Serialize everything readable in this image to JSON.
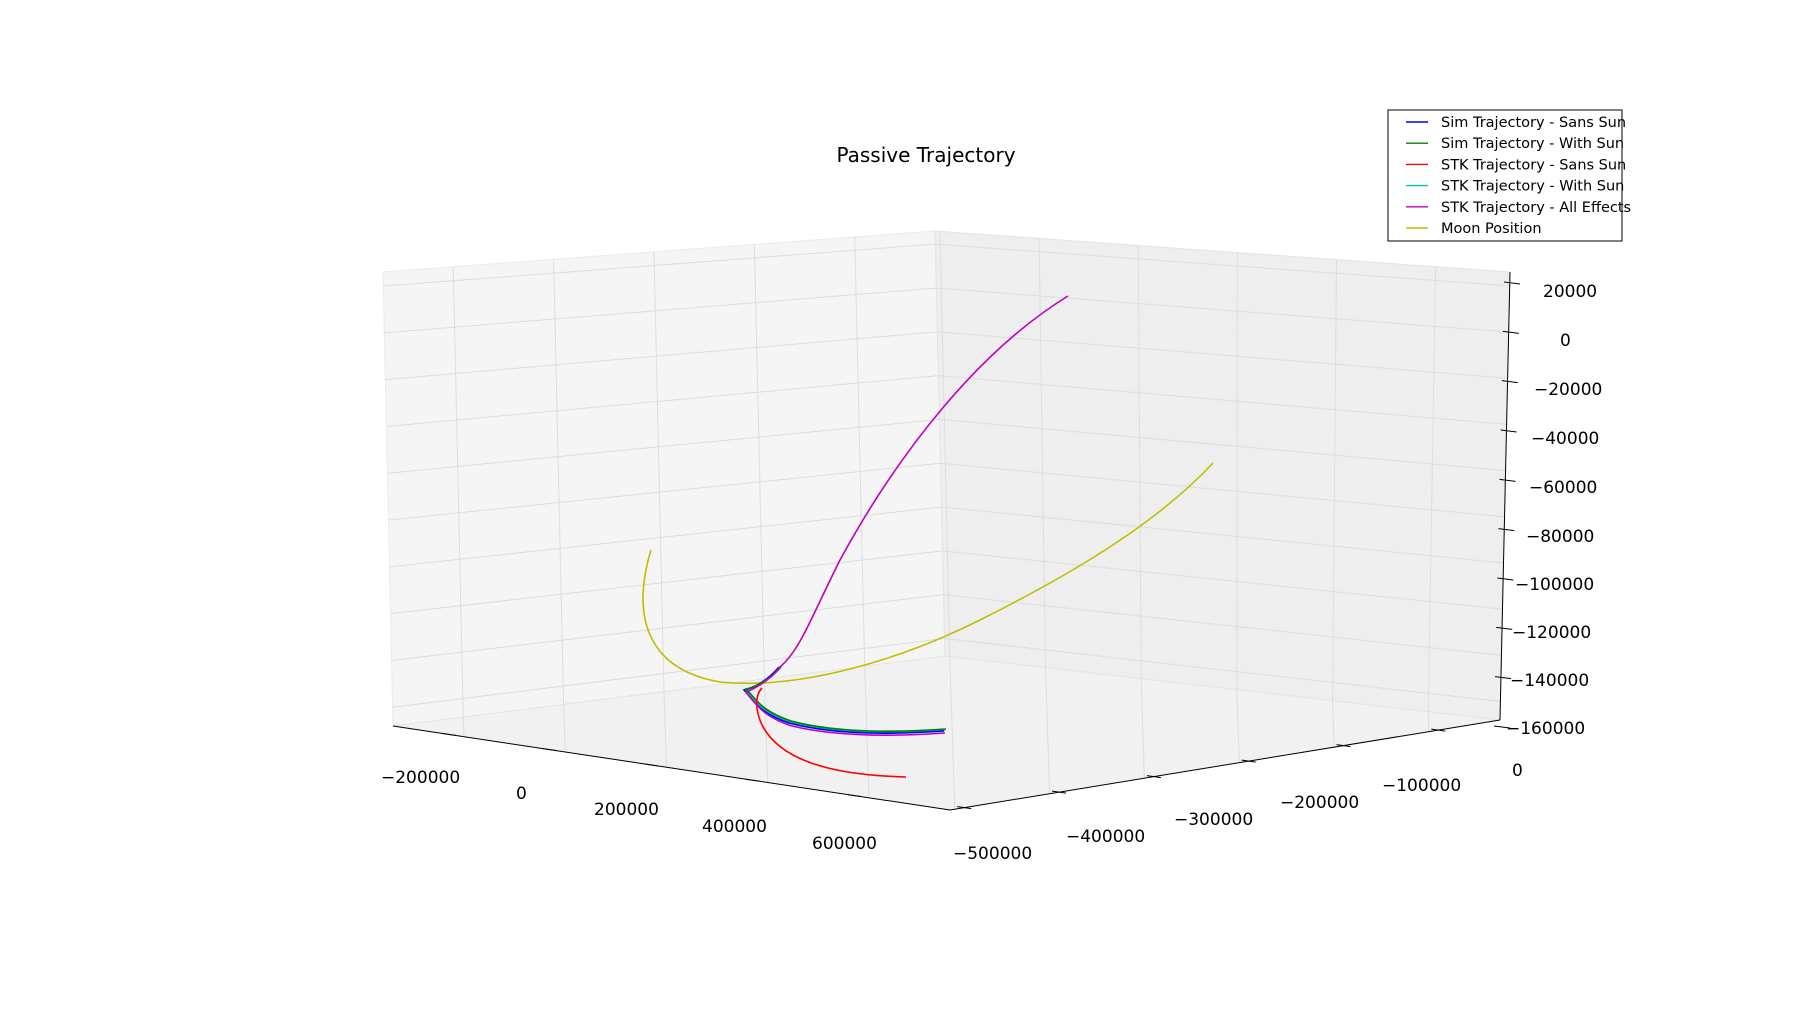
{
  "chart_data": {
    "type": "line",
    "projection": "3d",
    "title": "Passive Trajectory",
    "xlabel": "",
    "ylabel": "",
    "zlabel": "",
    "xlim": [
      -250000,
      700000
    ],
    "ylim": [
      -500000,
      0
    ],
    "zlim": [
      -160000,
      20000
    ],
    "x_ticks": [
      "−200000",
      "0",
      "200000",
      "400000",
      "600000"
    ],
    "y_ticks": [
      "−500000",
      "−400000",
      "−300000",
      "−200000",
      "−100000",
      "0"
    ],
    "z_ticks": [
      "20000",
      "0",
      "−20000",
      "−40000",
      "−60000",
      "−80000",
      "−100000",
      "−120000",
      "−140000",
      "−160000"
    ],
    "grid": true,
    "legend_position": "top-right",
    "series": [
      {
        "name": "Sim Trajectory - Sans Sun",
        "color": "#0000ff"
      },
      {
        "name": "Sim Trajectory - With Sun",
        "color": "#008000"
      },
      {
        "name": "STK Trajectory - Sans Sun",
        "color": "#ff0000"
      },
      {
        "name": "STK Trajectory - With Sun",
        "color": "#00bfbf"
      },
      {
        "name": "STK Trajectory - All Effects",
        "color": "#bf00bf"
      },
      {
        "name": "Moon Position",
        "color": "#bfbf00"
      }
    ]
  }
}
